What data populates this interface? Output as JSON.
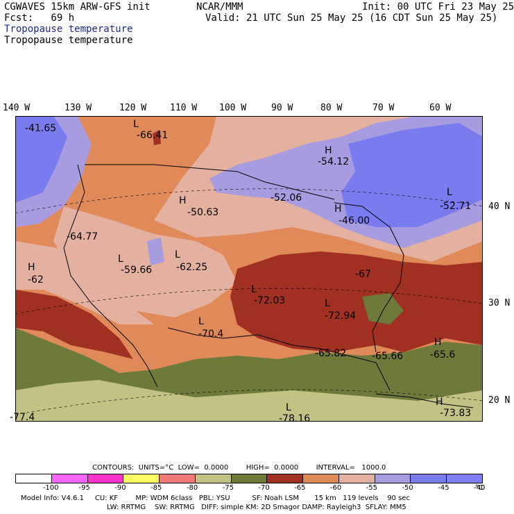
{
  "header": {
    "model": "CGWAVES 15km ARW-GFS init",
    "org": "NCAR/MMM",
    "init": "Init: 00 UTC Fri 23 May 25",
    "fcst": "Fcst:   69 h",
    "valid": "Valid: 21 UTC Sun 25 May 25 (16 CDT Sun 25 May 25)",
    "field_shaded": "Tropopause temperature",
    "field_contour": "Tropopause temperature"
  },
  "axes": {
    "lon_labels": [
      "140 W",
      "130 W",
      "120 W",
      "110 W",
      "100 W",
      "90 W",
      "80 W",
      "70 W",
      "60 W"
    ],
    "lat_labels": [
      "40 N",
      "30 N",
      "20 N"
    ]
  },
  "extrema": [
    {
      "type": "L",
      "value": "-66.41"
    },
    {
      "type": "",
      "value": "-41.65"
    },
    {
      "type": "H",
      "value": "-54.12"
    },
    {
      "type": "H",
      "value": "-50.63"
    },
    {
      "type": "",
      "value": "-52.06"
    },
    {
      "type": "H",
      "value": "-46.00"
    },
    {
      "type": "L",
      "value": "-52.71"
    },
    {
      "type": "",
      "value": "-64.77"
    },
    {
      "type": "L",
      "value": "-59.66"
    },
    {
      "type": "L",
      "value": "-62.25"
    },
    {
      "type": "H",
      "value": "-62"
    },
    {
      "type": "",
      "value": "-67"
    },
    {
      "type": "L",
      "value": "-72.03"
    },
    {
      "type": "L",
      "value": "-72.94"
    },
    {
      "type": "L",
      "value": "-70.4"
    },
    {
      "type": "",
      "value": "-65.82"
    },
    {
      "type": "",
      "value": "-65.66"
    },
    {
      "type": "H",
      "value": "-65.6"
    },
    {
      "type": "L",
      "value": "-78.16"
    },
    {
      "type": "",
      "value": "-77.4"
    },
    {
      "type": "H",
      "value": "-73.83"
    }
  ],
  "contours": {
    "text": "CONTOURS:  UNITS=°C  LOW=  0.0000        HIGH=  0.0000        INTERVAL=   1000.0"
  },
  "colorbar": {
    "labels": [
      "-100",
      "-95",
      "-90",
      "-85",
      "-80",
      "-75",
      "-70",
      "-65",
      "-60",
      "-55",
      "-50",
      "-45",
      "-40",
      "°C"
    ],
    "colors": [
      "#ffffff",
      "#ff66ff",
      "#ff33cc",
      "#ffff66",
      "#f07878",
      "#c2c285",
      "#6e7a3a",
      "#a03022",
      "#e08a5a",
      "#e4b0a0",
      "#a79ce0",
      "#7b7bf0",
      "#8080ff"
    ]
  },
  "footer": {
    "line1": "Model Info: V4.6.1     CU: KF        MP: WDM 6class   PBL: YSU          SF: Noah LSM       15 km   119 levels    90 sec",
    "line2": "LW: RRTMG    SW: RRTMG   DIFF: simple KM: 2D Smagor DAMP: Rayleigh3  SFLAY: MM5"
  }
}
